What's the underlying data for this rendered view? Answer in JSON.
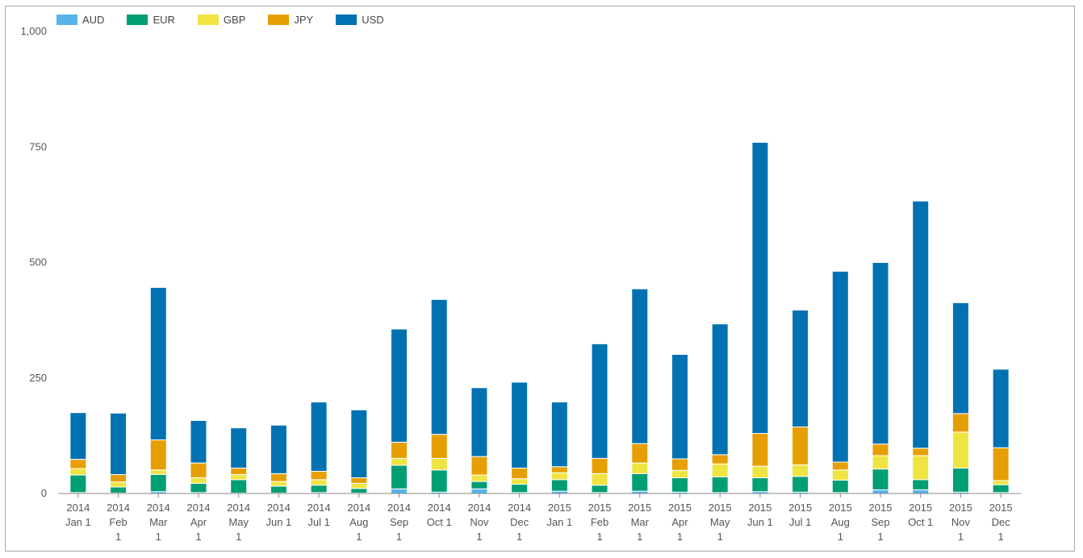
{
  "chart_data": {
    "type": "bar",
    "stacked": true,
    "categories": [
      [
        "2014",
        "Jan 1"
      ],
      [
        "2014",
        "Feb",
        "1"
      ],
      [
        "2014",
        "Mar",
        "1"
      ],
      [
        "2014",
        "Apr",
        "1"
      ],
      [
        "2014",
        "May",
        "1"
      ],
      [
        "2014",
        "Jun 1"
      ],
      [
        "2014",
        "Jul 1"
      ],
      [
        "2014",
        "Aug",
        "1"
      ],
      [
        "2014",
        "Sep",
        "1"
      ],
      [
        "2014",
        "Oct 1"
      ],
      [
        "2014",
        "Nov",
        "1"
      ],
      [
        "2014",
        "Dec",
        "1"
      ],
      [
        "2015",
        "Jan 1"
      ],
      [
        "2015",
        "Feb",
        "1"
      ],
      [
        "2015",
        "Mar",
        "1"
      ],
      [
        "2015",
        "Apr",
        "1"
      ],
      [
        "2015",
        "May",
        "1"
      ],
      [
        "2015",
        "Jun 1"
      ],
      [
        "2015",
        "Jul 1"
      ],
      [
        "2015",
        "Aug",
        "1"
      ],
      [
        "2015",
        "Sep",
        "1"
      ],
      [
        "2015",
        "Oct 1"
      ],
      [
        "2015",
        "Nov",
        "1"
      ],
      [
        "2015",
        "Dec",
        "1"
      ]
    ],
    "series": [
      {
        "name": "AUD",
        "color": "#56b4e9",
        "values": [
          2,
          1,
          4,
          2,
          1,
          1,
          2,
          1,
          10,
          3,
          10,
          2,
          5,
          2,
          5,
          3,
          2,
          4,
          3,
          2,
          8,
          8,
          3,
          2
        ]
      },
      {
        "name": "EUR",
        "color": "#009e73",
        "values": [
          38,
          13,
          37,
          20,
          29,
          15,
          16,
          10,
          51,
          48,
          16,
          18,
          25,
          16,
          38,
          31,
          34,
          30,
          34,
          27,
          45,
          22,
          52,
          17
        ]
      },
      {
        "name": "GBP",
        "color": "#f0e442",
        "values": [
          14,
          11,
          10,
          12,
          11,
          10,
          12,
          11,
          15,
          25,
          14,
          12,
          15,
          25,
          23,
          16,
          28,
          25,
          25,
          22,
          29,
          52,
          78,
          9
        ]
      },
      {
        "name": "JPY",
        "color": "#e69f00",
        "values": [
          20,
          16,
          65,
          32,
          14,
          17,
          18,
          12,
          35,
          52,
          40,
          23,
          13,
          33,
          42,
          25,
          20,
          71,
          82,
          17,
          25,
          16,
          40,
          71
        ]
      },
      {
        "name": "USD",
        "color": "#0072b2",
        "values": [
          101,
          133,
          330,
          92,
          87,
          105,
          150,
          147,
          245,
          292,
          149,
          186,
          140,
          248,
          335,
          226,
          283,
          630,
          253,
          413,
          393,
          535,
          240,
          170
        ]
      }
    ],
    "ylim": [
      0,
      1000
    ],
    "yticks": [
      "0",
      "250",
      "500",
      "750",
      "1,000"
    ],
    "ytick_values": [
      0,
      250,
      500,
      750,
      1000
    ],
    "grid": false,
    "legend_position": "top-left"
  }
}
